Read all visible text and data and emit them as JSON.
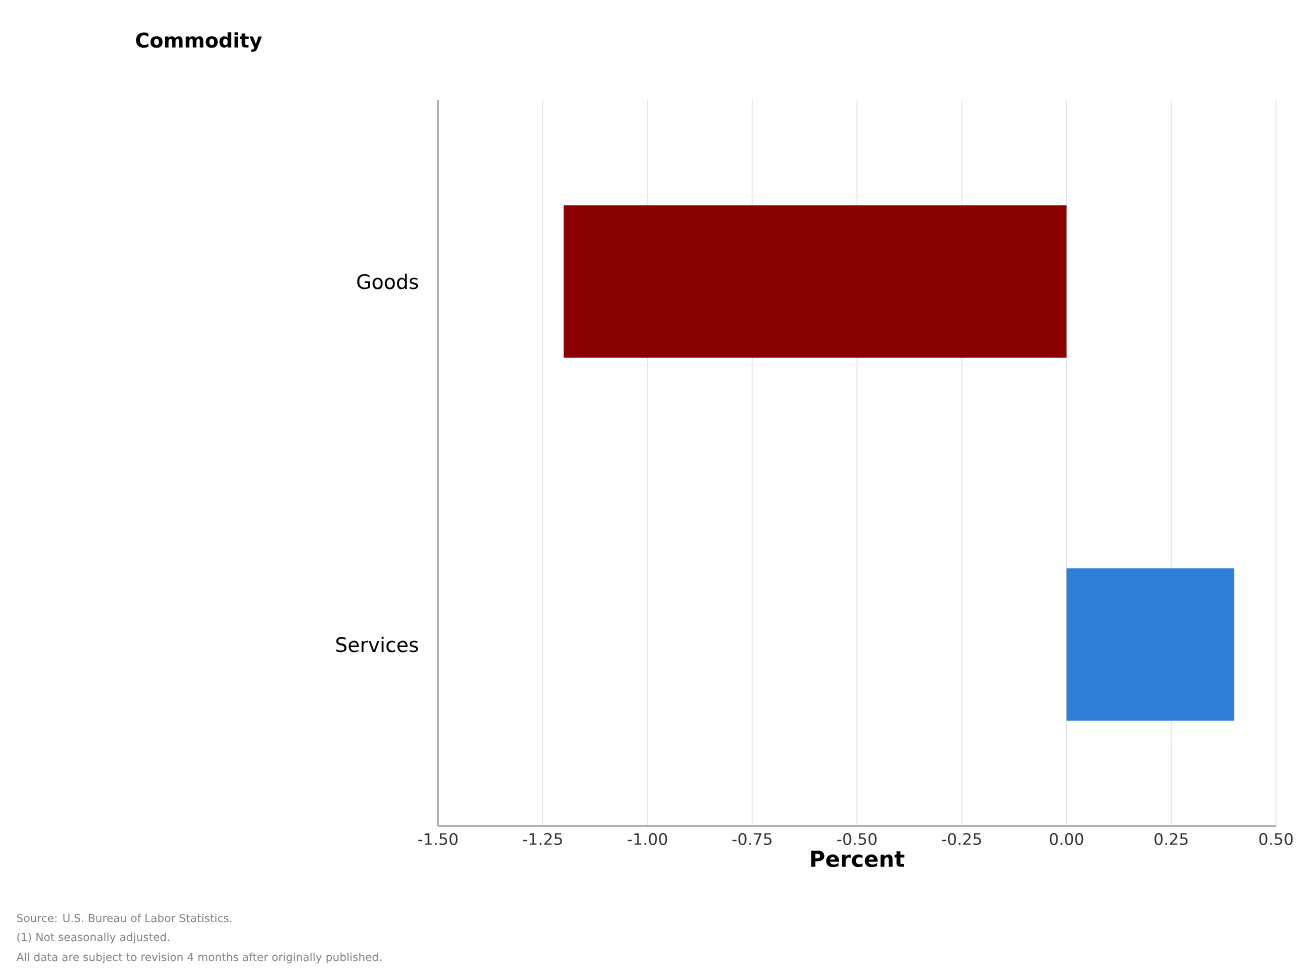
{
  "chart_data": {
    "type": "bar",
    "orientation": "horizontal",
    "xlabel": "Percent",
    "ylabel": "Commodity",
    "categories": [
      "Goods",
      "Services"
    ],
    "values": [
      -1.2,
      0.4
    ],
    "colors": [
      "#8b0000",
      "#2f7ed8"
    ],
    "xlim": [
      -1.5,
      0.5
    ],
    "xticks": [
      {
        "value": -1.5,
        "label": "-1.50"
      },
      -1.25,
      {
        "value": -1.0,
        "label": "-1.00"
      },
      -0.75,
      {
        "value": -0.5,
        "label": "-0.50"
      },
      -0.25,
      {
        "value": 0.0,
        "label": "0.00"
      },
      0.25,
      {
        "value": 0.5,
        "label": "0.50"
      }
    ],
    "grid": "x",
    "annotations": [
      "Source: U.S. Bureau of Labor Statistics.",
      "(1) Not seasonally adjusted.",
      "All data are subject to revision 4 months after originally published."
    ]
  }
}
